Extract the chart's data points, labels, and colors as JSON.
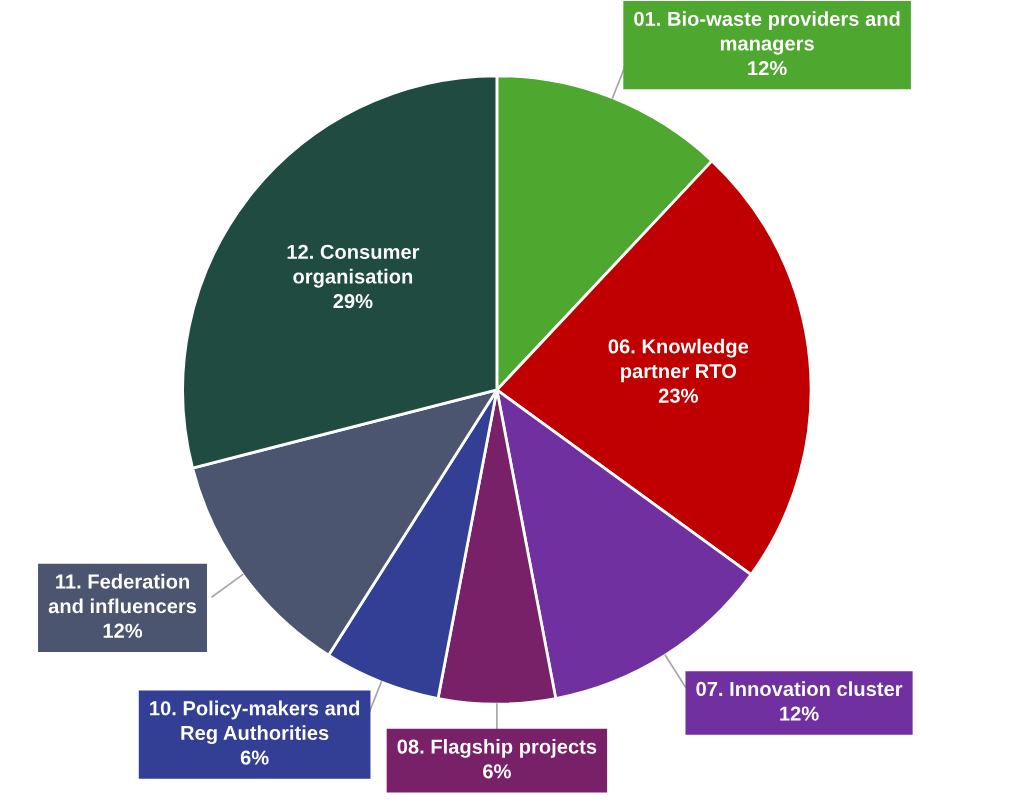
{
  "chart_data": {
    "type": "pie",
    "categories": [
      "01. Bio-waste providers and\nmanagers",
      "06. Knowledge\npartner RTO",
      "07. Innovation cluster",
      "08. Flagship projects",
      "10. Policy-makers and\nReg Authorities",
      "11. Federation\nand influencers",
      "12. Consumer\norganisation"
    ],
    "values": [
      12,
      23,
      12,
      6,
      6,
      12,
      29
    ],
    "value_labels": [
      "12%",
      "23%",
      "12%",
      "6%",
      "6%",
      "12%",
      "29%"
    ],
    "colors": [
      "#4ea72e",
      "#c00000",
      "#7030a0",
      "#782068",
      "#333f94",
      "#4b5570",
      "#1f4b40"
    ],
    "legend": false
  }
}
